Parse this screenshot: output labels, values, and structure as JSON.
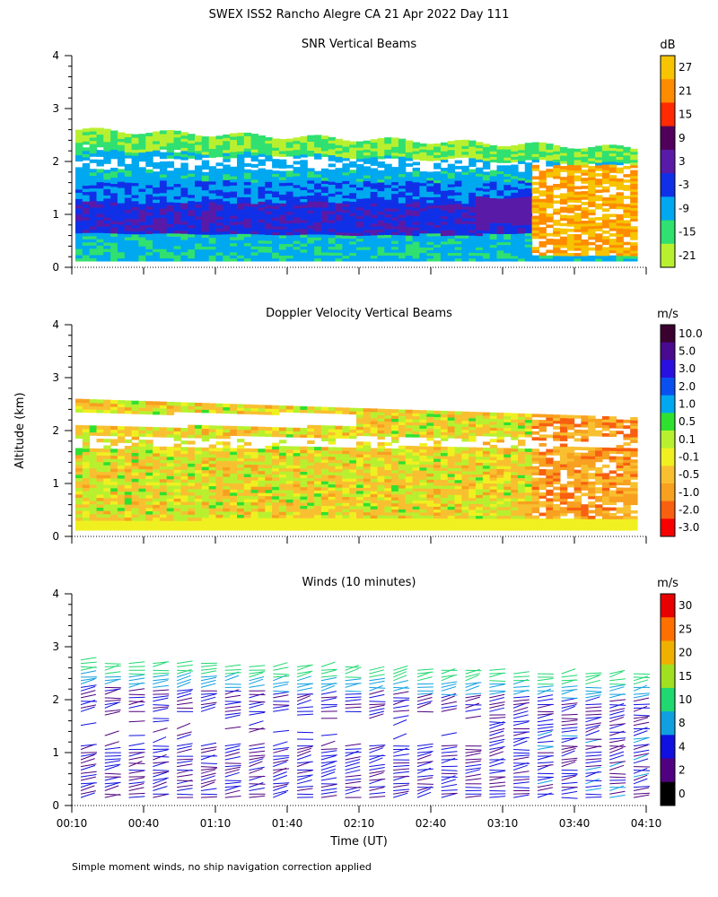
{
  "title": "SWEX ISS2 Rancho Alegre CA  21 Apr 2022 Day 111",
  "footnote": "Simple moment winds, no ship navigation correction applied",
  "chart_data": [
    {
      "type": "heatmap",
      "title": "SNR Vertical Beams",
      "ylabel": "",
      "xlabel": "",
      "ylim": [
        0,
        4
      ],
      "y_ticks": [
        "0",
        "1",
        "2",
        "3",
        "4"
      ],
      "colorbar_unit": "dB",
      "colorbar_labels": [
        "27",
        "21",
        "15",
        "9",
        "3",
        "-3",
        "-9",
        "-15",
        "-21"
      ],
      "colorbar_colors": [
        "#f6c400",
        "#ff8c00",
        "#ff2a00",
        "#50005a",
        "#5a1aa8",
        "#1030e8",
        "#00a8f0",
        "#30e070",
        "#b8f030"
      ]
    },
    {
      "type": "heatmap",
      "title": "Doppler Velocity Vertical Beams",
      "ylabel": "Altitude (km)",
      "xlabel": "",
      "ylim": [
        0,
        4
      ],
      "y_ticks": [
        "0",
        "1",
        "2",
        "3",
        "4"
      ],
      "colorbar_unit": "m/s",
      "colorbar_labels": [
        "10.0",
        "5.0",
        "3.0",
        "2.0",
        "1.0",
        "0.5",
        "0.1",
        "-0.1",
        "-0.5",
        "-1.0",
        "-2.0",
        "-3.0"
      ],
      "colorbar_colors": [
        "#3a0030",
        "#4a0a90",
        "#2a10e0",
        "#0a50f0",
        "#00a8f0",
        "#30e030",
        "#b8f030",
        "#f0f020",
        "#f8c030",
        "#f8a020",
        "#f86010",
        "#f80000"
      ]
    },
    {
      "type": "scatter",
      "title": "Winds (10 minutes)",
      "ylabel": "",
      "xlabel": "Time (UT)",
      "ylim": [
        0,
        4
      ],
      "y_ticks": [
        "0",
        "1",
        "2",
        "3",
        "4"
      ],
      "x_ticks": [
        "00:10",
        "00:40",
        "01:10",
        "01:40",
        "02:10",
        "02:40",
        "03:10",
        "03:40",
        "04:10"
      ],
      "colorbar_unit": "m/s",
      "colorbar_labels": [
        "30",
        "25",
        "20",
        "15",
        "10",
        "8",
        "4",
        "2",
        "0"
      ],
      "colorbar_colors": [
        "#e80000",
        "#ff7000",
        "#f0b000",
        "#a0e020",
        "#20d870",
        "#10a0e0",
        "#1010e0",
        "#500080",
        "#000000"
      ]
    }
  ]
}
